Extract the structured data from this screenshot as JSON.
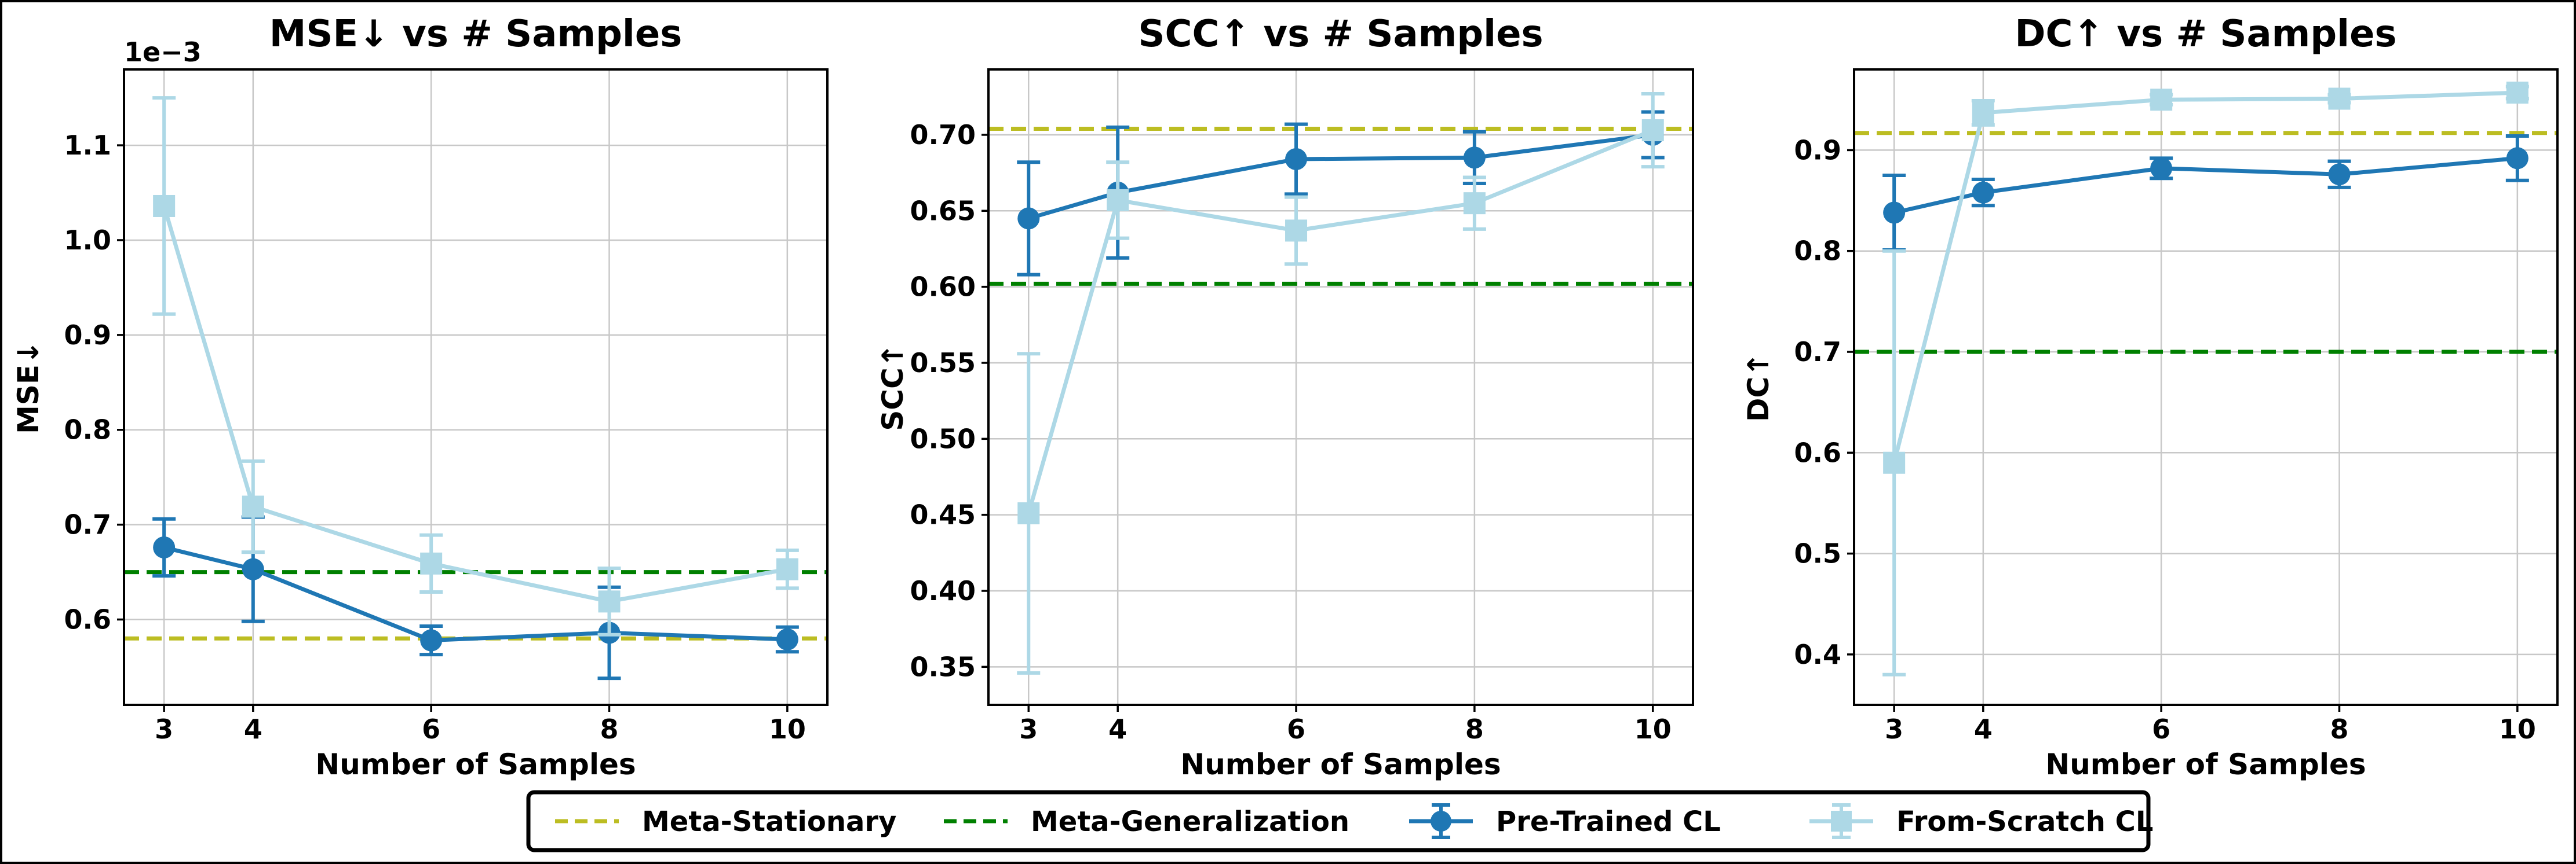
{
  "colors": {
    "meta_stationary": "#bcbd22",
    "meta_generalization": "#008000",
    "pretrained": "#1f77b4",
    "scratch": "#add8e6"
  },
  "legend": {
    "items": [
      {
        "label": "Meta-Stationary",
        "style": "dashed",
        "color": "#bcbd22"
      },
      {
        "label": "Meta-Generalization",
        "style": "dashed",
        "color": "#008000"
      },
      {
        "label": "Pre-Trained CL",
        "style": "circle",
        "color": "#1f77b4"
      },
      {
        "label": "From-Scratch CL",
        "style": "square",
        "color": "#add8e6"
      }
    ],
    "placement": "bottom-center"
  },
  "chart_data": [
    {
      "type": "line",
      "title": "MSE↓ vs # Samples",
      "xlabel": "Number of Samples",
      "ylabel": "MSE↓",
      "scale_note": "1e−3",
      "x": [
        3,
        4,
        6,
        8,
        10
      ],
      "xlim": [
        2.55,
        10.45
      ],
      "ylim": [
        0.51,
        1.18
      ],
      "yticks": [
        0.6,
        0.7,
        0.8,
        0.9,
        1.0,
        1.1
      ],
      "ytick_labels": [
        "0.6",
        "0.7",
        "0.8",
        "0.9",
        "1.0",
        "1.1"
      ],
      "grid": true,
      "hlines": [
        {
          "name": "Meta-Stationary",
          "value": 0.58
        },
        {
          "name": "Meta-Generalization",
          "value": 0.65
        }
      ],
      "series": [
        {
          "name": "Pre-Trained CL",
          "values": [
            0.676,
            0.653,
            0.578,
            0.586,
            0.579
          ],
          "err": [
            0.03,
            0.055,
            0.015,
            0.048,
            0.013
          ]
        },
        {
          "name": "From-Scratch CL",
          "values": [
            1.036,
            0.719,
            0.659,
            0.619,
            0.653
          ],
          "err": [
            0.114,
            0.048,
            0.03,
            0.035,
            0.02
          ]
        }
      ]
    },
    {
      "type": "line",
      "title": "SCC↑ vs # Samples",
      "xlabel": "Number of Samples",
      "ylabel": "SCC↑",
      "scale_note": "",
      "x": [
        3,
        4,
        6,
        8,
        10
      ],
      "xlim": [
        2.55,
        10.45
      ],
      "ylim": [
        0.325,
        0.743
      ],
      "yticks": [
        0.35,
        0.4,
        0.45,
        0.5,
        0.55,
        0.6,
        0.65,
        0.7
      ],
      "ytick_labels": [
        "0.35",
        "0.40",
        "0.45",
        "0.50",
        "0.55",
        "0.60",
        "0.65",
        "0.70"
      ],
      "grid": true,
      "hlines": [
        {
          "name": "Meta-Stationary",
          "value": 0.704
        },
        {
          "name": "Meta-Generalization",
          "value": 0.602
        }
      ],
      "series": [
        {
          "name": "Pre-Trained CL",
          "values": [
            0.645,
            0.662,
            0.684,
            0.685,
            0.7
          ],
          "err": [
            0.037,
            0.043,
            0.023,
            0.017,
            0.015
          ]
        },
        {
          "name": "From-Scratch CL",
          "values": [
            0.451,
            0.657,
            0.637,
            0.655,
            0.703
          ],
          "err": [
            0.105,
            0.025,
            0.022,
            0.017,
            0.024
          ]
        }
      ]
    },
    {
      "type": "line",
      "title": "DC↑ vs # Samples",
      "xlabel": "Number of Samples",
      "ylabel": "DC↑",
      "scale_note": "",
      "x": [
        3,
        4,
        6,
        8,
        10
      ],
      "xlim": [
        2.55,
        10.45
      ],
      "ylim": [
        0.35,
        0.98
      ],
      "yticks": [
        0.4,
        0.5,
        0.6,
        0.7,
        0.8,
        0.9
      ],
      "ytick_labels": [
        "0.4",
        "0.5",
        "0.6",
        "0.7",
        "0.8",
        "0.9"
      ],
      "grid": true,
      "hlines": [
        {
          "name": "Meta-Stationary",
          "value": 0.917
        },
        {
          "name": "Meta-Generalization",
          "value": 0.7
        }
      ],
      "series": [
        {
          "name": "Pre-Trained CL",
          "values": [
            0.838,
            0.858,
            0.882,
            0.876,
            0.892
          ],
          "err": [
            0.037,
            0.013,
            0.01,
            0.013,
            0.022
          ]
        },
        {
          "name": "From-Scratch CL",
          "values": [
            0.59,
            0.937,
            0.95,
            0.951,
            0.957
          ],
          "err": [
            0.21,
            0.012,
            0.005,
            0.004,
            0.006
          ]
        }
      ]
    }
  ]
}
